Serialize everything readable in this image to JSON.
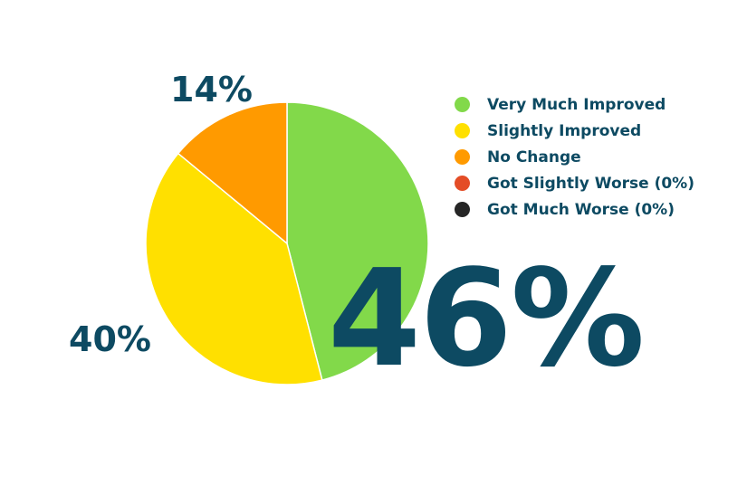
{
  "chart_data": {
    "type": "pie",
    "slices": [
      {
        "label": "Very Much Improved",
        "value": 46,
        "color": "#82d94a"
      },
      {
        "label": "Slightly Improved",
        "value": 40,
        "color": "#ffe000"
      },
      {
        "label": "No Change",
        "value": 14,
        "color": "#ff9a00"
      }
    ],
    "slice_labels": {
      "no_change": "14%",
      "slightly_improved": "40%"
    },
    "highlight_label": "46%",
    "legend": {
      "placement": "right",
      "entries": [
        {
          "label": "Very Much Improved",
          "color": "#82d94a"
        },
        {
          "label": "Slightly Improved",
          "color": "#ffe000"
        },
        {
          "label": "No Change",
          "color": "#ff9a00"
        },
        {
          "label": "Got Slightly Worse (0%)",
          "color": "#e44d26"
        },
        {
          "label": "Got Much Worse (0%)",
          "color": "#262626"
        }
      ]
    }
  },
  "colors": {
    "text": "#0d4a62"
  }
}
